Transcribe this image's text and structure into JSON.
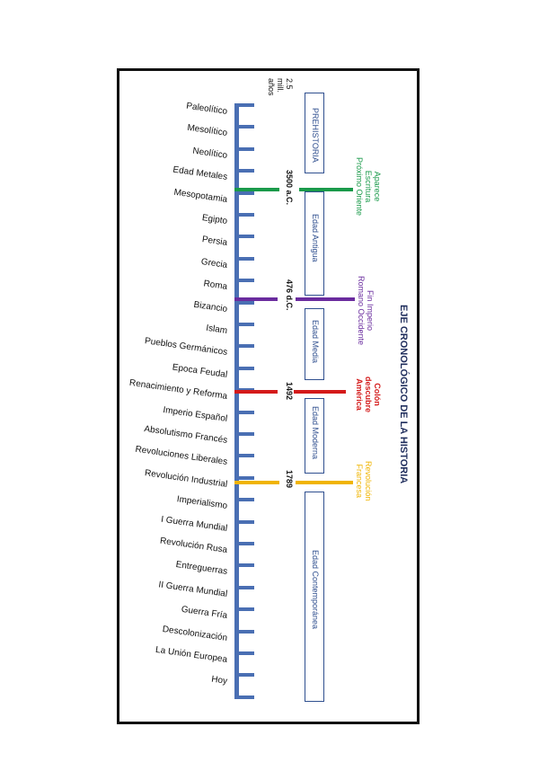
{
  "title": "EJE CRONOLÓGICO DE LA HISTORIA",
  "start_label": [
    "2.5",
    "mill.",
    "años"
  ],
  "epochs": [
    "Paleolítico",
    "Mesolítico",
    "Neolítico",
    "Edad Metales",
    "Mesopotamia",
    "Egipto",
    "Persia",
    "Grecia",
    "Roma",
    "Bizancio",
    "Islam",
    "Pueblos Germánicos",
    "Epoca Feudal",
    "Renacimiento y Reforma",
    "Imperio Español",
    "Absolutismo Francés",
    "Revoluciones Liberales",
    "Revolución Industrial",
    "Imperialismo",
    "I Guerra Mundial",
    "Revolución Rusa",
    "Entreguerras",
    "II Guerra Mundial",
    "Guerra Fría",
    "Descolonización",
    "La Unión Europea",
    "Hoy"
  ],
  "periods": [
    {
      "label": "PREHISTORIA"
    },
    {
      "label": "Edad Antigua"
    },
    {
      "label": "Edad Media"
    },
    {
      "label": "Edad Moderna"
    },
    {
      "label": "Edad Contemporánea"
    }
  ],
  "dates": [
    "3500 a.C.",
    "476 d.C.",
    "1492",
    "1789"
  ],
  "events": [
    {
      "lines": [
        "Aparece",
        "Escritura",
        "Próximo Oriente"
      ],
      "color": "#1a9a4a"
    },
    {
      "lines": [
        "Fin Imperio",
        "Romano Occidente"
      ],
      "color": "#6a2c9e"
    },
    {
      "lines": [
        "Colón",
        "descubre",
        "América"
      ],
      "color": "#d41a1a"
    },
    {
      "lines": [
        "Revolución",
        "Francesa"
      ],
      "color": "#f0b400"
    }
  ],
  "colors": {
    "axis": "#4a6fb3",
    "box": "#2f4f8f"
  }
}
